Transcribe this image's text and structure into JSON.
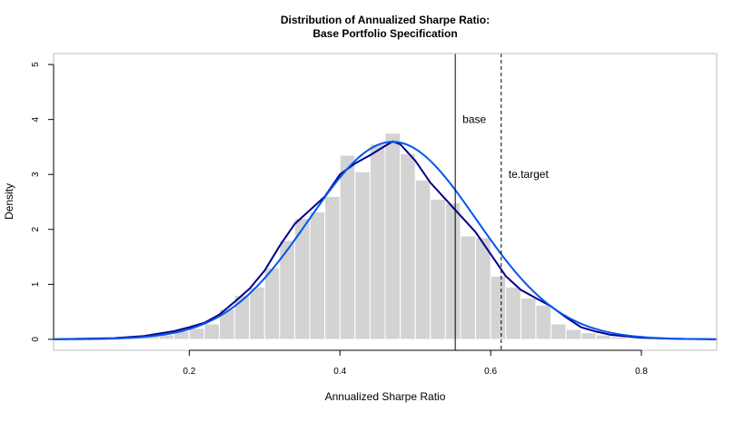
{
  "chart_data": {
    "type": "histogram",
    "title_line1": "Distribution of Annualized Sharpe Ratio:",
    "title_line2": "Base Portfolio Specification",
    "xlabel": "Annualized Sharpe Ratio",
    "ylabel": "Density",
    "xlim": [
      0.02,
      0.9
    ],
    "ylim": [
      -0.2,
      5.2
    ],
    "x_ticks": [
      {
        "value": 0.2,
        "label": "0.2"
      },
      {
        "value": 0.4,
        "label": "0.4"
      },
      {
        "value": 0.6,
        "label": "0.6"
      },
      {
        "value": 0.8,
        "label": "0.8"
      }
    ],
    "y_ticks": [
      {
        "value": 0,
        "label": "0"
      },
      {
        "value": 1,
        "label": "1"
      },
      {
        "value": 2,
        "label": "2"
      },
      {
        "value": 3,
        "label": "3"
      },
      {
        "value": 4,
        "label": "4"
      },
      {
        "value": 5,
        "label": "5"
      }
    ],
    "bin_width": 0.02,
    "bins": [
      {
        "x0": 0.02,
        "value": 0.0
      },
      {
        "x0": 0.04,
        "value": 0.0
      },
      {
        "x0": 0.06,
        "value": 0.0
      },
      {
        "x0": 0.08,
        "value": 0.01
      },
      {
        "x0": 0.1,
        "value": 0.02
      },
      {
        "x0": 0.12,
        "value": 0.03
      },
      {
        "x0": 0.14,
        "value": 0.05
      },
      {
        "x0": 0.16,
        "value": 0.08
      },
      {
        "x0": 0.18,
        "value": 0.15
      },
      {
        "x0": 0.2,
        "value": 0.2
      },
      {
        "x0": 0.22,
        "value": 0.28
      },
      {
        "x0": 0.24,
        "value": 0.55
      },
      {
        "x0": 0.26,
        "value": 0.8
      },
      {
        "x0": 0.28,
        "value": 0.95
      },
      {
        "x0": 0.3,
        "value": 1.3
      },
      {
        "x0": 0.32,
        "value": 1.8
      },
      {
        "x0": 0.34,
        "value": 2.2
      },
      {
        "x0": 0.36,
        "value": 2.32
      },
      {
        "x0": 0.38,
        "value": 2.6
      },
      {
        "x0": 0.4,
        "value": 3.35
      },
      {
        "x0": 0.42,
        "value": 3.05
      },
      {
        "x0": 0.44,
        "value": 3.55
      },
      {
        "x0": 0.46,
        "value": 3.75
      },
      {
        "x0": 0.48,
        "value": 3.38
      },
      {
        "x0": 0.5,
        "value": 2.9
      },
      {
        "x0": 0.52,
        "value": 2.55
      },
      {
        "x0": 0.54,
        "value": 2.48
      },
      {
        "x0": 0.56,
        "value": 1.88
      },
      {
        "x0": 0.58,
        "value": 1.85
      },
      {
        "x0": 0.6,
        "value": 1.15
      },
      {
        "x0": 0.62,
        "value": 0.95
      },
      {
        "x0": 0.64,
        "value": 0.75
      },
      {
        "x0": 0.66,
        "value": 0.62
      },
      {
        "x0": 0.68,
        "value": 0.28
      },
      {
        "x0": 0.7,
        "value": 0.18
      },
      {
        "x0": 0.72,
        "value": 0.12
      },
      {
        "x0": 0.74,
        "value": 0.08
      },
      {
        "x0": 0.76,
        "value": 0.05
      },
      {
        "x0": 0.78,
        "value": 0.03
      },
      {
        "x0": 0.8,
        "value": 0.01
      }
    ],
    "density_curve": {
      "color": "#00008B",
      "points": [
        [
          0.02,
          0.0
        ],
        [
          0.06,
          0.01
        ],
        [
          0.1,
          0.02
        ],
        [
          0.14,
          0.06
        ],
        [
          0.18,
          0.15
        ],
        [
          0.2,
          0.22
        ],
        [
          0.22,
          0.3
        ],
        [
          0.24,
          0.45
        ],
        [
          0.26,
          0.68
        ],
        [
          0.28,
          0.92
        ],
        [
          0.3,
          1.25
        ],
        [
          0.32,
          1.7
        ],
        [
          0.34,
          2.1
        ],
        [
          0.36,
          2.35
        ],
        [
          0.38,
          2.6
        ],
        [
          0.4,
          3.0
        ],
        [
          0.42,
          3.2
        ],
        [
          0.44,
          3.35
        ],
        [
          0.46,
          3.52
        ],
        [
          0.47,
          3.6
        ],
        [
          0.48,
          3.55
        ],
        [
          0.5,
          3.25
        ],
        [
          0.52,
          2.85
        ],
        [
          0.54,
          2.55
        ],
        [
          0.56,
          2.25
        ],
        [
          0.58,
          1.95
        ],
        [
          0.6,
          1.55
        ],
        [
          0.62,
          1.15
        ],
        [
          0.64,
          0.9
        ],
        [
          0.66,
          0.75
        ],
        [
          0.68,
          0.6
        ],
        [
          0.7,
          0.4
        ],
        [
          0.72,
          0.22
        ],
        [
          0.74,
          0.14
        ],
        [
          0.76,
          0.08
        ],
        [
          0.8,
          0.03
        ],
        [
          0.84,
          0.01
        ],
        [
          0.9,
          0.0
        ]
      ]
    },
    "normal_curve": {
      "color": "#0055EE",
      "mean": 0.47,
      "sd": 0.111
    },
    "vlines": [
      {
        "x": 0.553,
        "label": "base",
        "style": "solid",
        "label_y": 4.0
      },
      {
        "x": 0.614,
        "label": "te.target",
        "style": "dashed",
        "label_y": 3.0
      }
    ],
    "colors": {
      "bar_fill": "#D3D3D3",
      "bar_border": "#FFFFFF",
      "axis": "#000000",
      "frame": "#BEBEBE"
    }
  }
}
